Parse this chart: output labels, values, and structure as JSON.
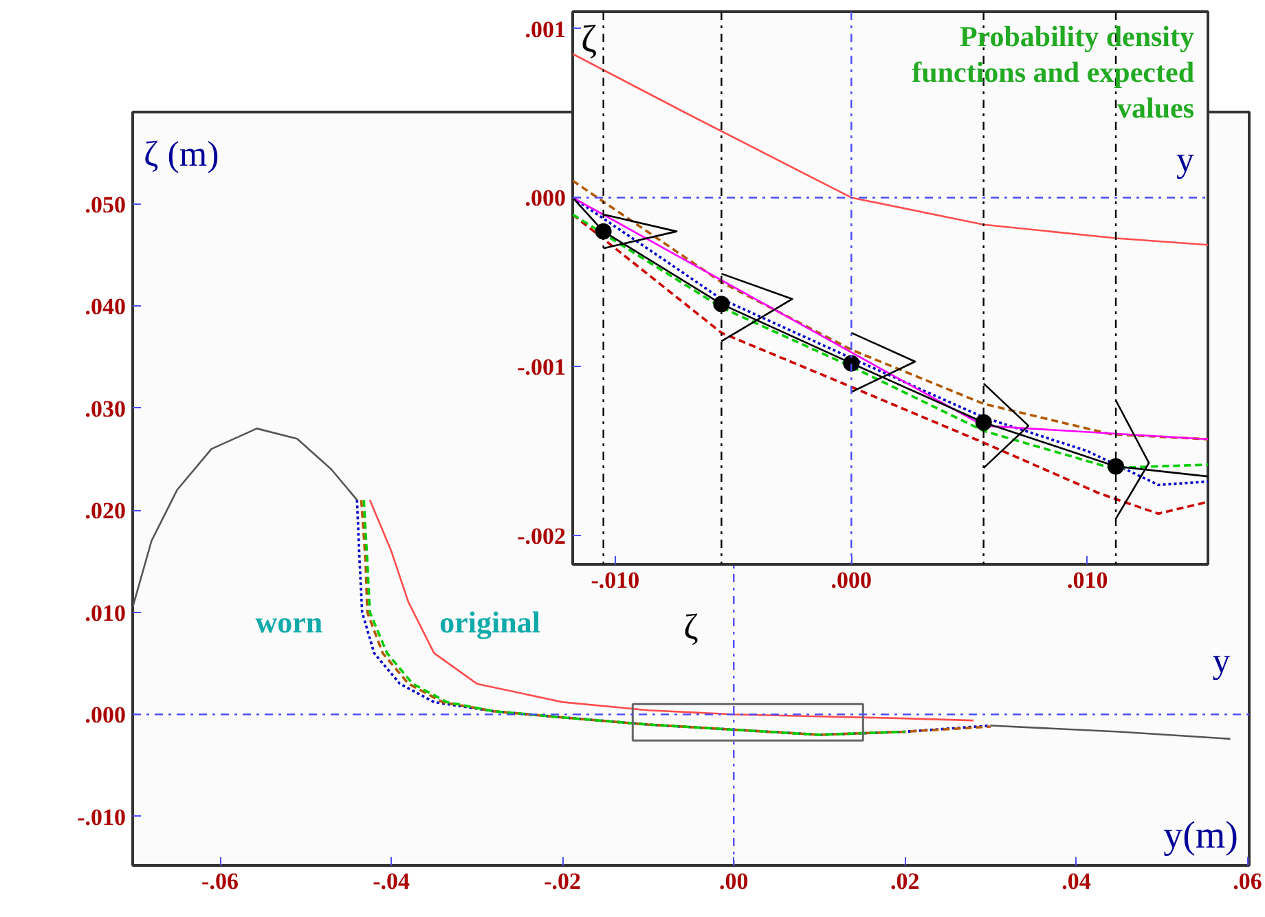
{
  "chart_data": [
    {
      "type": "line",
      "xlabel": "y(m)",
      "ylabel": "ζ (m)",
      "xlim": [
        -0.0702,
        0.0602
      ],
      "ylim": [
        -0.0148,
        0.059
      ],
      "xticks": [
        {
          "value": -0.06,
          "label": "-.06"
        },
        {
          "value": -0.04,
          "label": "-.04"
        },
        {
          "value": -0.02,
          "label": "-.02"
        },
        {
          "value": 0,
          "label": ".00"
        },
        {
          "value": 0.02,
          "label": ".02"
        },
        {
          "value": 0.04,
          "label": ".04"
        },
        {
          "value": 0.06,
          "label": ".06"
        }
      ],
      "yticks": [
        {
          "value": -0.01,
          "label": "-.010"
        },
        {
          "value": 0,
          "label": ".000"
        },
        {
          "value": 0.01,
          "label": ".010"
        },
        {
          "value": 0.02,
          "label": ".020"
        },
        {
          "value": 0.03,
          "label": ".030"
        },
        {
          "value": 0.04,
          "label": ".040"
        },
        {
          "value": 0.05,
          "label": ".050"
        }
      ],
      "grid": false,
      "marker": "none",
      "ref_lines": [
        {
          "axis": "x",
          "value": 0,
          "color": "#4d4dff",
          "line_style": "dashdot"
        },
        {
          "axis": "y",
          "value": 0,
          "color": "#4d4dff",
          "line_style": "dashdot"
        }
      ],
      "annotations": [
        "worn",
        "original",
        "y",
        "ζ"
      ],
      "series": [
        {
          "color": "#555555",
          "line_style": "solid",
          "x": [
            -0.0702,
            -0.068,
            -0.065,
            -0.061,
            -0.0557,
            -0.051,
            -0.047,
            -0.044
          ],
          "values": [
            0.0105,
            0.017,
            0.022,
            0.026,
            0.028,
            0.027,
            0.024,
            0.021
          ]
        },
        {
          "color": "#555555",
          "line_style": "solid",
          "x": [
            0.03,
            0.045,
            0.058
          ],
          "values": [
            -0.0011,
            -0.0017,
            -0.0024
          ]
        },
        {
          "color": "#ff4d4d",
          "line_style": "solid",
          "x": [
            -0.0425,
            -0.04,
            -0.038,
            -0.035,
            -0.03,
            -0.02,
            -0.01,
            0.0,
            0.01,
            0.02,
            0.028
          ],
          "values": [
            0.021,
            0.016,
            0.011,
            0.006,
            0.003,
            0.0012,
            0.0004,
            0.0,
            -0.0002,
            -0.0004,
            -0.0006
          ]
        },
        {
          "color": "#0000cc",
          "line_style": "dotted",
          "x": [
            -0.044,
            -0.0437,
            -0.0434,
            -0.042,
            -0.039,
            -0.035,
            -0.028,
            -0.02,
            -0.01,
            0.0,
            0.01,
            0.02,
            0.03
          ],
          "values": [
            0.021,
            0.015,
            0.01,
            0.006,
            0.003,
            0.0012,
            0.0003,
            -0.0003,
            -0.001,
            -0.0015,
            -0.002,
            -0.0017,
            -0.0011
          ]
        },
        {
          "color": "#b35900",
          "line_style": "dashed",
          "x": [
            -0.0435,
            -0.043,
            -0.0428,
            -0.041,
            -0.038,
            -0.034,
            -0.028,
            -0.02,
            -0.01,
            0.0,
            0.01,
            0.02,
            0.03
          ],
          "values": [
            0.021,
            0.015,
            0.01,
            0.006,
            0.003,
            0.0012,
            0.0003,
            -0.0003,
            -0.001,
            -0.0015,
            -0.002,
            -0.0017,
            -0.0012
          ]
        },
        {
          "color": "#00cc00",
          "line_style": "dashed",
          "x": [
            -0.0432,
            -0.0428,
            -0.0425,
            -0.0405,
            -0.0375,
            -0.0335,
            -0.028,
            -0.02,
            -0.01,
            0.0,
            0.01,
            0.02
          ],
          "values": [
            0.021,
            0.015,
            0.01,
            0.006,
            0.003,
            0.0012,
            0.0003,
            -0.0003,
            -0.001,
            -0.0015,
            -0.002,
            -0.0017
          ]
        }
      ]
    },
    {
      "type": "line",
      "ylabel": "ζ",
      "xlim": [
        -0.0118,
        0.0151
      ],
      "ylim": [
        -0.00217,
        0.0011
      ],
      "xticks": [
        {
          "value": -0.01,
          "label": "-.010"
        },
        {
          "value": 0,
          "label": ".000"
        },
        {
          "value": 0.01,
          "label": ".010"
        }
      ],
      "yticks": [
        {
          "value": -0.002,
          "label": "-.002"
        },
        {
          "value": -0.001,
          "label": "-.001"
        },
        {
          "value": 0,
          "label": ".000"
        },
        {
          "value": 0.001,
          "label": ".001"
        }
      ],
      "grid": false,
      "marker": "none",
      "ref_lines": [
        {
          "axis": "x",
          "value": 0,
          "color": "#4d4dff",
          "line_style": "dashdot"
        },
        {
          "axis": "y",
          "value": 0,
          "color": "#4d4dff",
          "line_style": "dashdot"
        },
        {
          "axis": "x",
          "value": -0.0105,
          "color": "#000000",
          "line_style": "dashdot"
        },
        {
          "axis": "x",
          "value": -0.0055,
          "color": "#000000",
          "line_style": "dashdot"
        },
        {
          "axis": "x",
          "value": 0.0056,
          "color": "#000000",
          "line_style": "dashdot"
        },
        {
          "axis": "x",
          "value": 0.0112,
          "color": "#000000",
          "line_style": "dashdot"
        }
      ],
      "annotations": [
        "Probability density functions and expected values",
        "y"
      ],
      "series": [
        {
          "color": "#ff4d4d",
          "line_style": "solid",
          "x": [
            -0.0118,
            -0.007,
            0.0,
            0.0056,
            0.0112,
            0.0151
          ],
          "values": [
            0.00085,
            0.0005,
            0.0,
            -0.00016,
            -0.00024,
            -0.00028
          ]
        },
        {
          "color": "#cc0000",
          "line_style": "dashed",
          "x": [
            -0.0118,
            -0.0055,
            0.0,
            0.0056,
            0.0105,
            0.013,
            0.0151
          ],
          "values": [
            -0.0001,
            -0.0008,
            -0.00112,
            -0.00145,
            -0.00175,
            -0.00187,
            -0.0018
          ]
        },
        {
          "color": "#0000cc",
          "line_style": "dotted",
          "x": [
            -0.0118,
            -0.0055,
            0.0,
            0.0056,
            0.01,
            0.013,
            0.0151
          ],
          "values": [
            0.0,
            -0.0006,
            -0.00095,
            -0.0013,
            -0.0015,
            -0.0017,
            -0.00168
          ]
        },
        {
          "color": "#00cc00",
          "line_style": "dashed",
          "x": [
            -0.0118,
            -0.0055,
            0.0,
            0.0056,
            0.011,
            0.0151
          ],
          "values": [
            -0.0001,
            -0.00065,
            -0.001,
            -0.00138,
            -0.0016,
            -0.00158
          ]
        },
        {
          "color": "#b35900",
          "line_style": "dashed",
          "x": [
            -0.0118,
            -0.0055,
            0.0,
            0.0056,
            0.011,
            0.0151
          ],
          "values": [
            0.0001,
            -0.0005,
            -0.0009,
            -0.00122,
            -0.0014,
            -0.00143
          ]
        },
        {
          "color": "#ff00ff",
          "line_style": "solid",
          "x": [
            -0.0118,
            0.0056,
            0.0151
          ],
          "values": [
            0.0,
            -0.00135,
            -0.00143
          ]
        },
        {
          "color": "#000000",
          "line_style": "solid",
          "marker": "circle",
          "x": [
            -0.0118,
            -0.0105,
            -0.0055,
            0.0,
            0.0056,
            0.0112,
            0.0151
          ],
          "values": [
            0.0,
            -0.0002,
            -0.00063,
            -0.00098,
            -0.00133,
            -0.00159,
            -0.00165
          ]
        },
        {
          "color": "#000000",
          "line_style": "solid",
          "x": [
            -0.0105,
            -0.0074,
            -0.0105
          ],
          "values": [
            -0.0001,
            -0.0002,
            -0.0003
          ]
        },
        {
          "color": "#000000",
          "line_style": "solid",
          "x": [
            -0.0055,
            -0.0025,
            -0.0055
          ],
          "values": [
            -0.00045,
            -0.0006,
            -0.00085
          ]
        },
        {
          "color": "#000000",
          "line_style": "solid",
          "x": [
            0.0,
            0.0027,
            0.0
          ],
          "values": [
            -0.0008,
            -0.00097,
            -0.00115
          ]
        },
        {
          "color": "#000000",
          "line_style": "solid",
          "x": [
            0.0056,
            0.0075,
            0.0056
          ],
          "values": [
            -0.0011,
            -0.00135,
            -0.0016
          ]
        },
        {
          "color": "#000000",
          "line_style": "solid",
          "x": [
            0.0112,
            0.0126,
            0.0112
          ],
          "values": [
            -0.0012,
            -0.00157,
            -0.0019
          ]
        }
      ]
    }
  ]
}
